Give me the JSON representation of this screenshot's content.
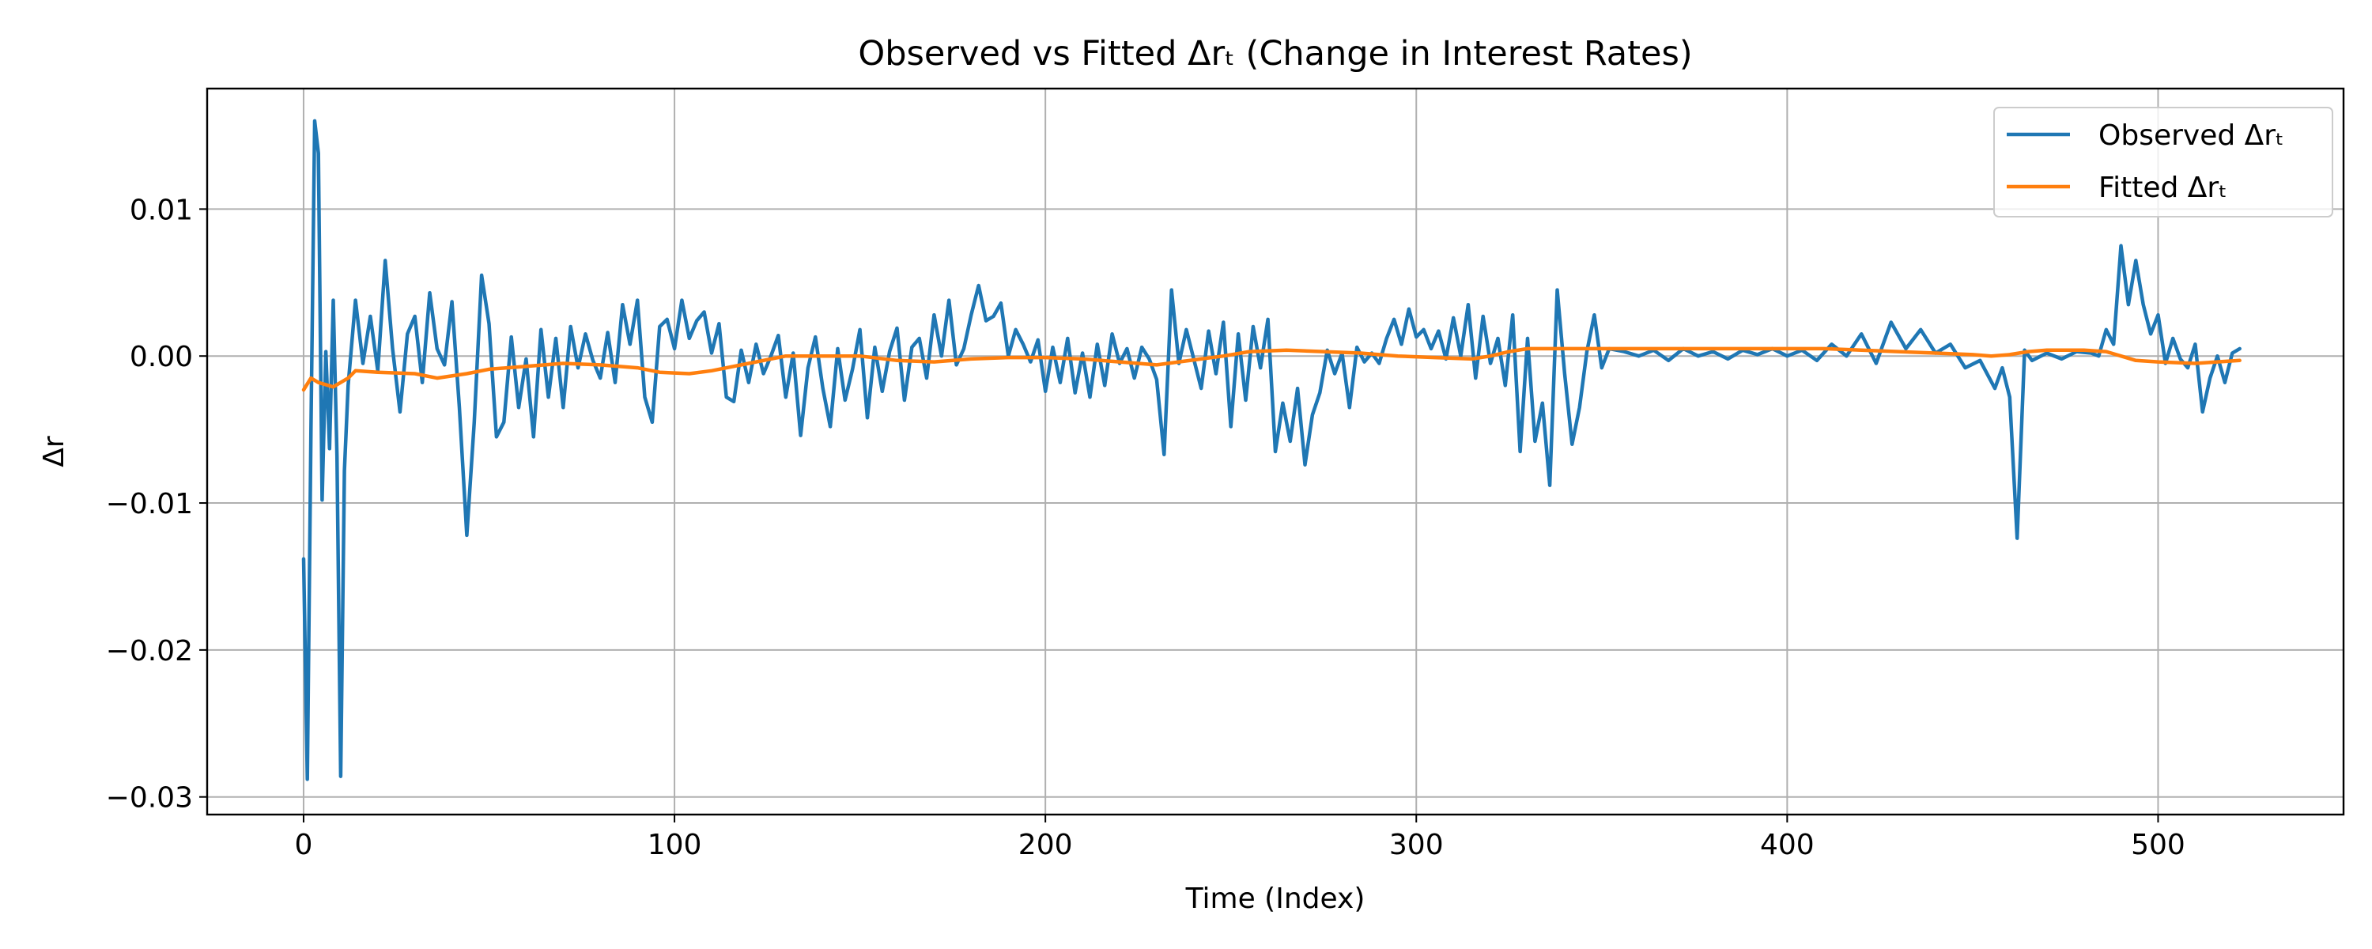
{
  "chart_data": {
    "type": "line",
    "title": "Observed vs Fitted Δrₜ (Change in Interest Rates)",
    "xlabel": "Time (Index)",
    "ylabel": "Δr",
    "xlim": [
      -26,
      550
    ],
    "ylim": [
      -0.0312,
      0.0182
    ],
    "x_ticks": [
      0,
      100,
      200,
      300,
      400,
      500
    ],
    "x_tick_labels": [
      "0",
      "100",
      "200",
      "300",
      "400",
      "500"
    ],
    "y_ticks": [
      -0.03,
      -0.02,
      -0.01,
      0.0,
      0.01
    ],
    "y_tick_labels": [
      "−0.03",
      "−0.02",
      "−0.01",
      "0.00",
      "0.01"
    ],
    "grid": true,
    "legend_position": "top-right",
    "series_colors": [
      "#1f77b4",
      "#ff7f0e"
    ],
    "series": [
      {
        "name": "Observed Δrₜ",
        "color": "#1f77b4",
        "points": [
          [
            0,
            -0.0138
          ],
          [
            1,
            -0.0288
          ],
          [
            2,
            -0.005
          ],
          [
            3,
            0.016
          ],
          [
            4,
            0.0138
          ],
          [
            5,
            -0.0098
          ],
          [
            6,
            0.0003
          ],
          [
            7,
            -0.0063
          ],
          [
            8,
            0.0038
          ],
          [
            9,
            -0.0068
          ],
          [
            10,
            -0.0286
          ],
          [
            11,
            -0.0078
          ],
          [
            12,
            -0.002
          ],
          [
            14,
            0.0038
          ],
          [
            16,
            -0.0005
          ],
          [
            18,
            0.0027
          ],
          [
            20,
            -0.001
          ],
          [
            22,
            0.0065
          ],
          [
            24,
            0.0005
          ],
          [
            26,
            -0.0038
          ],
          [
            28,
            0.0015
          ],
          [
            30,
            0.0027
          ],
          [
            32,
            -0.0018
          ],
          [
            34,
            0.0043
          ],
          [
            36,
            0.0005
          ],
          [
            38,
            -0.0006
          ],
          [
            40,
            0.0037
          ],
          [
            42,
            -0.0035
          ],
          [
            44,
            -0.0122
          ],
          [
            46,
            -0.0045
          ],
          [
            48,
            0.0055
          ],
          [
            50,
            0.0022
          ],
          [
            52,
            -0.0055
          ],
          [
            54,
            -0.0045
          ],
          [
            56,
            0.0013
          ],
          [
            58,
            -0.0035
          ],
          [
            60,
            -0.0002
          ],
          [
            62,
            -0.0055
          ],
          [
            64,
            0.0018
          ],
          [
            66,
            -0.0028
          ],
          [
            68,
            0.0012
          ],
          [
            70,
            -0.0035
          ],
          [
            72,
            0.002
          ],
          [
            74,
            -0.0008
          ],
          [
            76,
            0.0015
          ],
          [
            78,
            -0.0003
          ],
          [
            80,
            -0.0015
          ],
          [
            82,
            0.0016
          ],
          [
            84,
            -0.0018
          ],
          [
            86,
            0.0035
          ],
          [
            88,
            0.0008
          ],
          [
            90,
            0.0038
          ],
          [
            92,
            -0.0028
          ],
          [
            94,
            -0.0045
          ],
          [
            96,
            0.002
          ],
          [
            98,
            0.0025
          ],
          [
            100,
            0.0005
          ],
          [
            102,
            0.0038
          ],
          [
            104,
            0.0012
          ],
          [
            106,
            0.0024
          ],
          [
            108,
            0.003
          ],
          [
            110,
            0.0002
          ],
          [
            112,
            0.0022
          ],
          [
            114,
            -0.0028
          ],
          [
            116,
            -0.0031
          ],
          [
            118,
            0.0004
          ],
          [
            120,
            -0.0018
          ],
          [
            122,
            0.0008
          ],
          [
            124,
            -0.0012
          ],
          [
            126,
            0.0
          ],
          [
            128,
            0.0014
          ],
          [
            130,
            -0.0028
          ],
          [
            132,
            0.0002
          ],
          [
            134,
            -0.0054
          ],
          [
            136,
            -0.0008
          ],
          [
            138,
            0.0013
          ],
          [
            140,
            -0.0022
          ],
          [
            142,
            -0.0048
          ],
          [
            144,
            0.0005
          ],
          [
            146,
            -0.003
          ],
          [
            148,
            -0.0009
          ],
          [
            150,
            0.0018
          ],
          [
            152,
            -0.0042
          ],
          [
            154,
            0.0006
          ],
          [
            156,
            -0.0024
          ],
          [
            158,
            0.0003
          ],
          [
            160,
            0.0019
          ],
          [
            162,
            -0.003
          ],
          [
            164,
            0.0006
          ],
          [
            166,
            0.0012
          ],
          [
            168,
            -0.0015
          ],
          [
            170,
            0.0028
          ],
          [
            172,
            0.0
          ],
          [
            174,
            0.0038
          ],
          [
            176,
            -0.0006
          ],
          [
            178,
            0.0005
          ],
          [
            180,
            0.0028
          ],
          [
            182,
            0.0048
          ],
          [
            184,
            0.0024
          ],
          [
            186,
            0.0027
          ],
          [
            188,
            0.0036
          ],
          [
            190,
            0.0
          ],
          [
            192,
            0.0018
          ],
          [
            194,
            0.0008
          ],
          [
            196,
            -0.0004
          ],
          [
            198,
            0.0011
          ],
          [
            200,
            -0.0024
          ],
          [
            202,
            0.0006
          ],
          [
            204,
            -0.0018
          ],
          [
            206,
            0.0012
          ],
          [
            208,
            -0.0025
          ],
          [
            210,
            0.0002
          ],
          [
            212,
            -0.0028
          ],
          [
            214,
            0.0008
          ],
          [
            216,
            -0.002
          ],
          [
            218,
            0.0015
          ],
          [
            220,
            -0.0005
          ],
          [
            222,
            0.0005
          ],
          [
            224,
            -0.0015
          ],
          [
            226,
            0.0006
          ],
          [
            228,
            -0.0002
          ],
          [
            230,
            -0.0016
          ],
          [
            232,
            -0.0067
          ],
          [
            234,
            0.0045
          ],
          [
            236,
            -0.0005
          ],
          [
            238,
            0.0018
          ],
          [
            240,
            -0.0002
          ],
          [
            242,
            -0.0022
          ],
          [
            244,
            0.0017
          ],
          [
            246,
            -0.0012
          ],
          [
            248,
            0.0023
          ],
          [
            250,
            -0.0048
          ],
          [
            252,
            0.0015
          ],
          [
            254,
            -0.003
          ],
          [
            256,
            0.002
          ],
          [
            258,
            -0.0008
          ],
          [
            260,
            0.0025
          ],
          [
            262,
            -0.0065
          ],
          [
            264,
            -0.0032
          ],
          [
            266,
            -0.0058
          ],
          [
            268,
            -0.0022
          ],
          [
            270,
            -0.0074
          ],
          [
            272,
            -0.004
          ],
          [
            274,
            -0.0025
          ],
          [
            276,
            0.0004
          ],
          [
            278,
            -0.0012
          ],
          [
            280,
            0.0002
          ],
          [
            282,
            -0.0035
          ],
          [
            284,
            0.0006
          ],
          [
            286,
            -0.0004
          ],
          [
            288,
            0.0002
          ],
          [
            290,
            -0.0005
          ],
          [
            292,
            0.0012
          ],
          [
            294,
            0.0025
          ],
          [
            296,
            0.0008
          ],
          [
            298,
            0.0032
          ],
          [
            300,
            0.0013
          ],
          [
            302,
            0.0018
          ],
          [
            304,
            0.0005
          ],
          [
            306,
            0.0017
          ],
          [
            308,
            -0.0002
          ],
          [
            310,
            0.0026
          ],
          [
            312,
            0.0
          ],
          [
            314,
            0.0035
          ],
          [
            316,
            -0.0015
          ],
          [
            318,
            0.0027
          ],
          [
            320,
            -0.0005
          ],
          [
            322,
            0.0012
          ],
          [
            324,
            -0.002
          ],
          [
            326,
            0.0028
          ],
          [
            328,
            -0.0065
          ],
          [
            330,
            0.0012
          ],
          [
            332,
            -0.0058
          ],
          [
            334,
            -0.0032
          ],
          [
            336,
            -0.0088
          ],
          [
            338,
            0.0045
          ],
          [
            340,
            -0.0012
          ],
          [
            342,
            -0.006
          ],
          [
            344,
            -0.0035
          ],
          [
            346,
            0.0003
          ],
          [
            348,
            0.0028
          ],
          [
            350,
            -0.0008
          ],
          [
            352,
            0.0005
          ],
          [
            356,
            0.0003
          ],
          [
            360,
            0.0
          ],
          [
            364,
            0.0004
          ],
          [
            368,
            -0.0003
          ],
          [
            372,
            0.0005
          ],
          [
            376,
            0.0
          ],
          [
            380,
            0.0003
          ],
          [
            384,
            -0.0002
          ],
          [
            388,
            0.0004
          ],
          [
            392,
            0.0001
          ],
          [
            396,
            0.0005
          ],
          [
            400,
            0.0
          ],
          [
            404,
            0.0004
          ],
          [
            408,
            -0.0003
          ],
          [
            412,
            0.0008
          ],
          [
            416,
            0.0
          ],
          [
            420,
            0.0015
          ],
          [
            424,
            -0.0005
          ],
          [
            428,
            0.0023
          ],
          [
            432,
            0.0005
          ],
          [
            436,
            0.0018
          ],
          [
            440,
            0.0002
          ],
          [
            444,
            0.0008
          ],
          [
            448,
            -0.0008
          ],
          [
            452,
            -0.0003
          ],
          [
            456,
            -0.0022
          ],
          [
            458,
            -0.0008
          ],
          [
            460,
            -0.0028
          ],
          [
            462,
            -0.0124
          ],
          [
            464,
            0.0004
          ],
          [
            466,
            -0.0003
          ],
          [
            470,
            0.0002
          ],
          [
            474,
            -0.0002
          ],
          [
            478,
            0.0003
          ],
          [
            482,
            0.0002
          ],
          [
            484,
            0.0
          ],
          [
            486,
            0.0018
          ],
          [
            488,
            0.0008
          ],
          [
            490,
            0.0075
          ],
          [
            492,
            0.0035
          ],
          [
            494,
            0.0065
          ],
          [
            496,
            0.0035
          ],
          [
            498,
            0.0015
          ],
          [
            500,
            0.0028
          ],
          [
            502,
            -0.0005
          ],
          [
            504,
            0.0012
          ],
          [
            506,
            -0.0002
          ],
          [
            508,
            -0.0008
          ],
          [
            510,
            0.0008
          ],
          [
            512,
            -0.0038
          ],
          [
            514,
            -0.0015
          ],
          [
            516,
            0.0
          ],
          [
            518,
            -0.0018
          ],
          [
            520,
            0.0002
          ],
          [
            522,
            0.0005
          ]
        ]
      },
      {
        "name": "Fitted Δrₜ",
        "color": "#ff7f0e",
        "points": [
          [
            0,
            -0.0023
          ],
          [
            2,
            -0.0015
          ],
          [
            4,
            -0.0018
          ],
          [
            8,
            -0.0021
          ],
          [
            12,
            -0.0015
          ],
          [
            14,
            -0.001
          ],
          [
            20,
            -0.0011
          ],
          [
            30,
            -0.0012
          ],
          [
            36,
            -0.0015
          ],
          [
            44,
            -0.0012
          ],
          [
            50,
            -0.0009
          ],
          [
            60,
            -0.0007
          ],
          [
            70,
            -0.0005
          ],
          [
            80,
            -0.0006
          ],
          [
            90,
            -0.0008
          ],
          [
            96,
            -0.0011
          ],
          [
            104,
            -0.0012
          ],
          [
            110,
            -0.001
          ],
          [
            120,
            -0.0005
          ],
          [
            130,
            0.0
          ],
          [
            140,
            0.0
          ],
          [
            150,
            0.0
          ],
          [
            160,
            -0.0003
          ],
          [
            170,
            -0.0004
          ],
          [
            180,
            -0.0002
          ],
          [
            190,
            -0.0001
          ],
          [
            200,
            -0.0001
          ],
          [
            210,
            -0.0002
          ],
          [
            220,
            -0.0004
          ],
          [
            230,
            -0.0006
          ],
          [
            236,
            -0.0004
          ],
          [
            242,
            -0.0002
          ],
          [
            248,
            0.0
          ],
          [
            255,
            0.0003
          ],
          [
            265,
            0.0004
          ],
          [
            275,
            0.0003
          ],
          [
            285,
            0.0002
          ],
          [
            295,
            0.0
          ],
          [
            305,
            -0.0001
          ],
          [
            315,
            -0.0002
          ],
          [
            320,
            0.0
          ],
          [
            325,
            0.0003
          ],
          [
            330,
            0.0005
          ],
          [
            340,
            0.0005
          ],
          [
            350,
            0.0005
          ],
          [
            360,
            0.0005
          ],
          [
            370,
            0.0005
          ],
          [
            380,
            0.0005
          ],
          [
            390,
            0.0005
          ],
          [
            400,
            0.0005
          ],
          [
            410,
            0.0005
          ],
          [
            420,
            0.0004
          ],
          [
            430,
            0.0003
          ],
          [
            440,
            0.0002
          ],
          [
            450,
            0.0001
          ],
          [
            455,
            0.0
          ],
          [
            460,
            0.0001
          ],
          [
            465,
            0.0003
          ],
          [
            470,
            0.0004
          ],
          [
            480,
            0.0004
          ],
          [
            486,
            0.0003
          ],
          [
            490,
            0.0
          ],
          [
            494,
            -0.0003
          ],
          [
            500,
            -0.0004
          ],
          [
            510,
            -0.0005
          ],
          [
            516,
            -0.0004
          ],
          [
            522,
            -0.0003
          ]
        ]
      }
    ]
  }
}
